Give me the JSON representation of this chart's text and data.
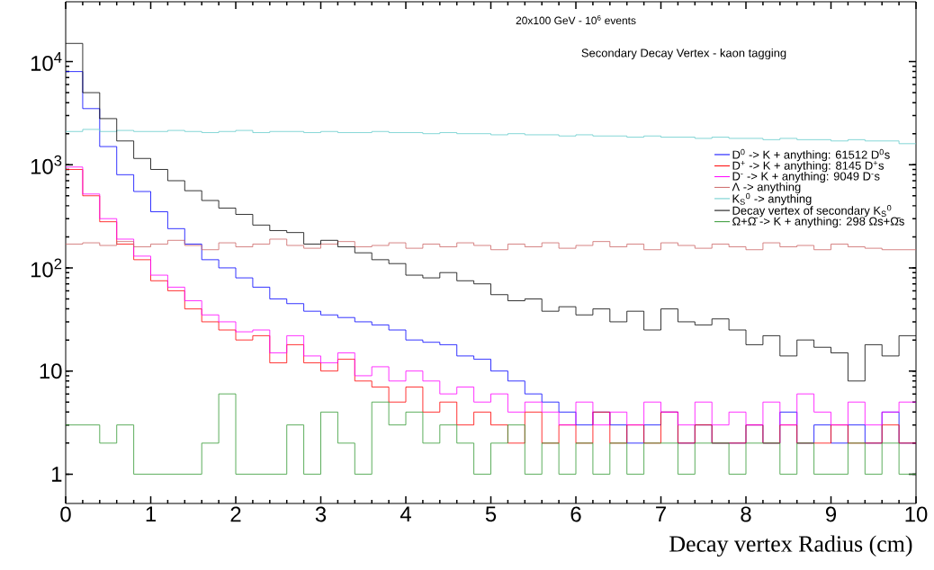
{
  "chart_data": {
    "type": "histogram",
    "title": "20x100 GeV - 10$^{6}$ events",
    "subtitle": "Secondary Decay Vertex - kaon tagging",
    "xlabel": "Decay vertex Radius (cm)",
    "bins": [
      0,
      0.2,
      0.4,
      0.6,
      0.8,
      1,
      1.2,
      1.4,
      1.6,
      1.8,
      2,
      2.2,
      2.4,
      2.6,
      2.8,
      3,
      3.2,
      3.4,
      3.6,
      3.8,
      4,
      4.2,
      4.4,
      4.6,
      4.8,
      5,
      5.2,
      5.4,
      5.6,
      5.8,
      6,
      6.2,
      6.4,
      6.6,
      6.8,
      7,
      7.2,
      7.4,
      7.6,
      7.8,
      8,
      8.2,
      8.4,
      8.6,
      8.8,
      9,
      9.2,
      9.4,
      9.6,
      9.8,
      10
    ],
    "series": [
      {
        "name": "D$^{0}$ -> K + anything: 61512 D$^{0}$s",
        "color": "#0000ff",
        "values": [
          8000,
          3500,
          1500,
          800,
          550,
          350,
          240,
          170,
          120,
          100,
          80,
          65,
          50,
          45,
          38,
          35,
          33,
          30,
          28,
          25,
          20,
          19,
          18,
          14,
          13,
          10,
          8,
          6,
          5,
          4,
          3,
          4,
          3,
          2,
          3,
          4,
          2,
          3,
          2,
          2,
          3,
          2,
          4,
          2,
          3,
          2,
          3,
          2,
          4,
          2
        ]
      },
      {
        "name": "D$^{+}$ -> K + anything: 8145 D$^{+}$s",
        "color": "#ff0000",
        "values": [
          900,
          500,
          280,
          170,
          120,
          75,
          60,
          40,
          30,
          25,
          20,
          22,
          12,
          18,
          12,
          10,
          13,
          8,
          7,
          5,
          7,
          4,
          5,
          3,
          4,
          3,
          2,
          4,
          2,
          3,
          2,
          4,
          2,
          3,
          2,
          4,
          2,
          3,
          2,
          2,
          3,
          2,
          3,
          2,
          2,
          3,
          2,
          2,
          3,
          2
        ]
      },
      {
        "name": "D$^{-}$ -> K + anything: 9049 D$^{-}$s",
        "color": "#ff00ff",
        "values": [
          950,
          520,
          300,
          190,
          130,
          85,
          65,
          48,
          35,
          30,
          24,
          25,
          15,
          22,
          14,
          12,
          15,
          9,
          11,
          8,
          10,
          8,
          6,
          7,
          5,
          6,
          4,
          5,
          4,
          3,
          5,
          3,
          4,
          3,
          5,
          4,
          3,
          5,
          3,
          4,
          3,
          5,
          3,
          6,
          4,
          3,
          5,
          3,
          4,
          5
        ]
      },
      {
        "name": "Λ -> anything",
        "color": "#cc6666",
        "values": [
          170,
          175,
          165,
          180,
          160,
          170,
          185,
          165,
          150,
          175,
          160,
          170,
          190,
          165,
          155,
          170,
          180,
          160,
          165,
          175,
          155,
          170,
          160,
          175,
          165,
          150,
          170,
          160,
          175,
          155,
          165,
          180,
          160,
          170,
          150,
          175,
          165,
          155,
          170,
          160,
          150,
          175,
          160,
          165,
          150,
          170,
          160,
          155,
          150,
          150
        ]
      },
      {
        "name": "K$_{S}$$^{0}$ -> anything",
        "color": "#66cccc",
        "values": [
          2100,
          2200,
          2100,
          2150,
          2100,
          2100,
          2150,
          2100,
          2050,
          2100,
          2150,
          2050,
          2100,
          2100,
          2050,
          2100,
          2050,
          2050,
          2100,
          2050,
          2050,
          2000,
          2050,
          2000,
          2000,
          1950,
          2000,
          1950,
          1950,
          1900,
          1950,
          1900,
          1900,
          1850,
          1900,
          1850,
          1850,
          1800,
          1850,
          1800,
          1800,
          1750,
          1800,
          1750,
          1750,
          1700,
          1750,
          1700,
          1700,
          1600
        ]
      },
      {
        "name": "Decay vertex of secondary K$_{S}$$^{0}$",
        "color": "#000000",
        "values": [
          15000,
          5000,
          2800,
          1700,
          1150,
          900,
          700,
          560,
          450,
          380,
          330,
          260,
          230,
          220,
          170,
          185,
          160,
          140,
          120,
          110,
          85,
          80,
          90,
          75,
          70,
          55,
          48,
          50,
          38,
          42,
          35,
          40,
          30,
          38,
          25,
          40,
          30,
          28,
          32,
          25,
          18,
          22,
          14,
          20,
          17,
          15,
          8,
          18,
          14,
          22
        ]
      },
      {
        "name": "Ω+Ω̄ -> K + anything: 298 Ωs+Ω̄s",
        "color": "#339933",
        "values": [
          3,
          3,
          2,
          3,
          1,
          1,
          1,
          1,
          2,
          6,
          1,
          1,
          1,
          3,
          1,
          4,
          2,
          1,
          5,
          3,
          4,
          2,
          3,
          2,
          1,
          2,
          3,
          1,
          2,
          1,
          2,
          1,
          2,
          1,
          2,
          2,
          1,
          2,
          2,
          1,
          2,
          2,
          1,
          2,
          1,
          1,
          2,
          1,
          2,
          1
        ]
      }
    ],
    "xlim": [
      0,
      10
    ],
    "ylim": [
      0.52,
      38000
    ],
    "xticks": [
      0,
      1,
      2,
      3,
      4,
      5,
      6,
      7,
      8,
      9,
      10
    ],
    "yticks": [
      1,
      10,
      {
        "value": 100,
        "label": "10$^{2}$"
      },
      {
        "value": 1000,
        "label": "10$^{3}$"
      },
      {
        "value": 10000,
        "label": "10$^{4}$"
      }
    ],
    "log": "y",
    "legend": "top right"
  }
}
